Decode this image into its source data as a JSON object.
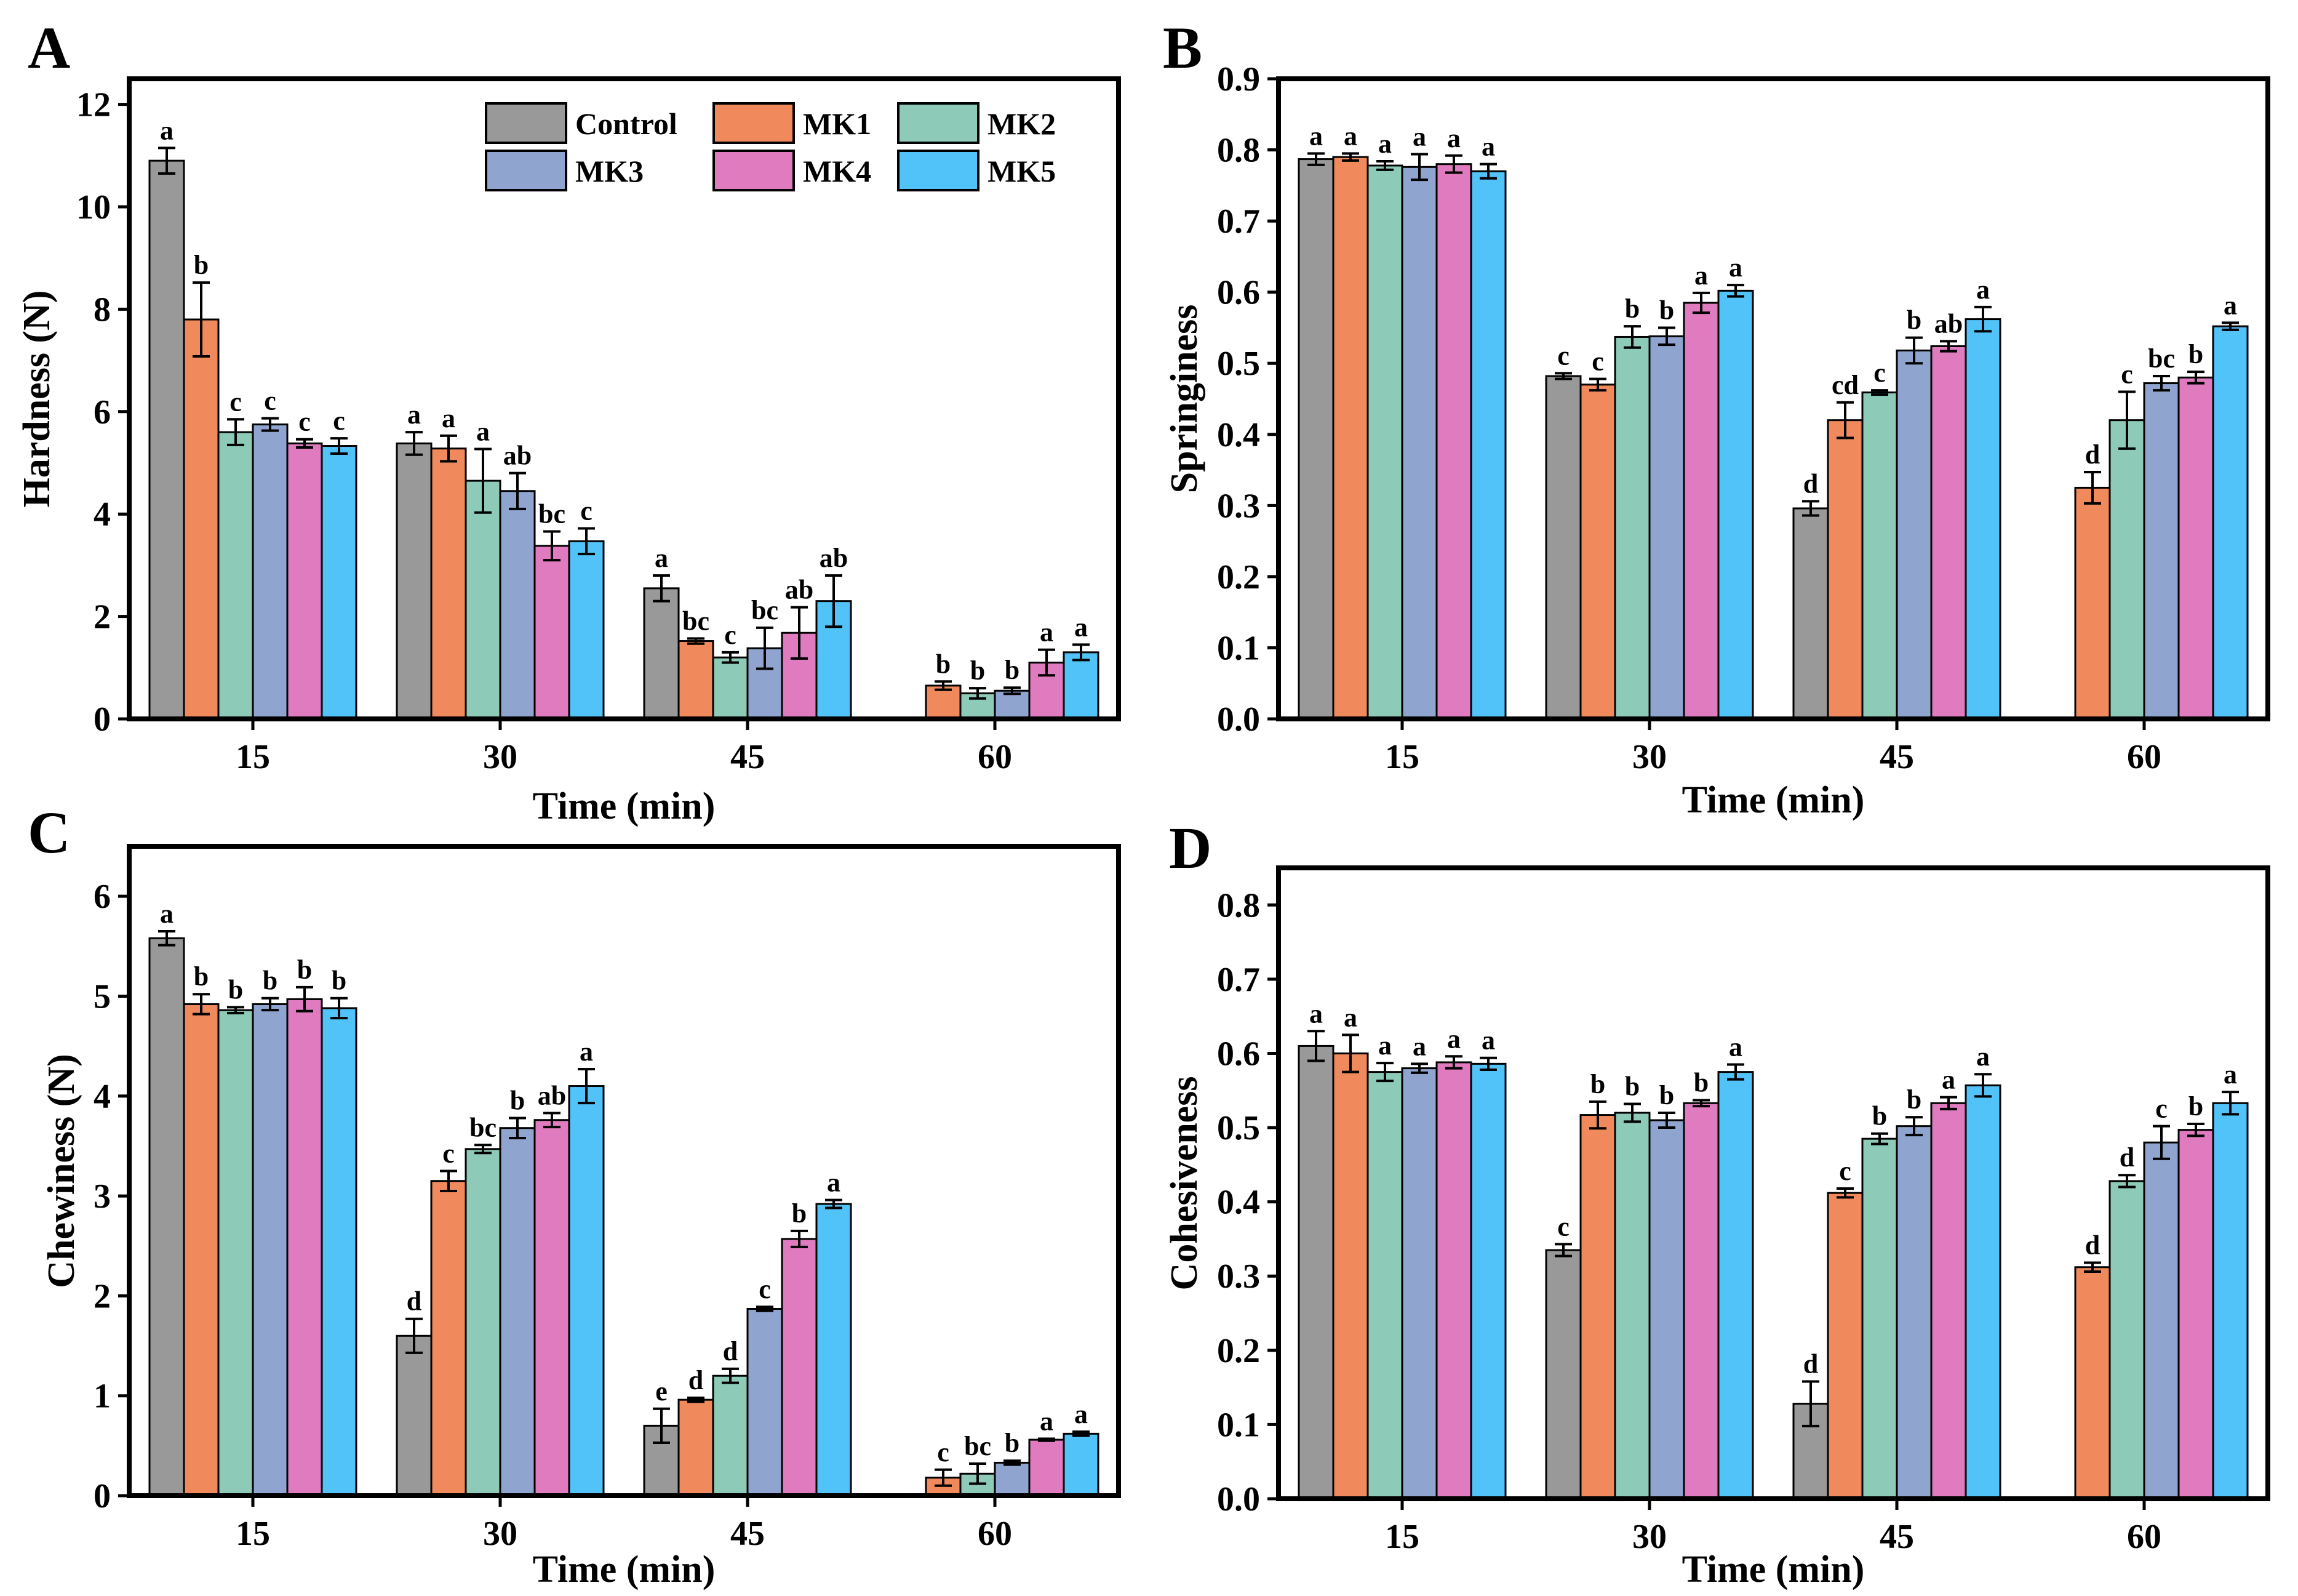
{
  "chart_data": [
    {
      "panel_letter": "A",
      "type": "bar",
      "xlabel": "Time (min)",
      "ylabel": "Hardness (N)",
      "ylim": [
        0,
        12.5
      ],
      "yticks": [
        "0",
        "2",
        "4",
        "6",
        "8",
        "10",
        "12"
      ],
      "categories": [
        "15",
        "30",
        "45",
        "60"
      ],
      "legend_position": "top-right",
      "series": [
        {
          "name": "Control",
          "color": "#999999",
          "values": [
            10.9,
            5.38,
            2.55,
            null
          ],
          "errors": [
            0.25,
            0.22,
            0.25,
            null
          ],
          "labels": [
            "a",
            "a",
            "a",
            ""
          ]
        },
        {
          "name": "MK1",
          "color": "#F08A5D",
          "values": [
            7.8,
            5.28,
            1.52,
            0.65
          ],
          "errors": [
            0.72,
            0.25,
            0.05,
            0.08
          ],
          "labels": [
            "b",
            "a",
            "bc",
            "b"
          ]
        },
        {
          "name": "MK2",
          "color": "#8DCBB8",
          "values": [
            5.6,
            4.65,
            1.2,
            0.5
          ],
          "errors": [
            0.25,
            0.62,
            0.1,
            0.1
          ],
          "labels": [
            "c",
            "a",
            "c",
            "b"
          ]
        },
        {
          "name": "MK3",
          "color": "#8FA4CF",
          "values": [
            5.75,
            4.45,
            1.38,
            0.55
          ],
          "errors": [
            0.12,
            0.35,
            0.4,
            0.06
          ],
          "labels": [
            "c",
            "ab",
            "bc",
            "b"
          ]
        },
        {
          "name": "MK4",
          "color": "#DF7BBE",
          "values": [
            5.38,
            3.38,
            1.68,
            1.1
          ],
          "errors": [
            0.08,
            0.28,
            0.5,
            0.25
          ],
          "labels": [
            "c",
            "bc",
            "ab",
            "a"
          ]
        },
        {
          "name": "MK5",
          "color": "#52C3F8",
          "values": [
            5.33,
            3.47,
            2.3,
            1.3
          ],
          "errors": [
            0.15,
            0.25,
            0.5,
            0.15
          ],
          "labels": [
            "c",
            "c",
            "ab",
            "a"
          ]
        }
      ]
    },
    {
      "panel_letter": "B",
      "type": "bar",
      "xlabel": "Time (min)",
      "ylabel": "Springiness",
      "ylim": [
        0,
        0.9
      ],
      "yticks": [
        "0.0",
        "0.1",
        "0.2",
        "0.3",
        "0.4",
        "0.5",
        "0.6",
        "0.7",
        "0.8",
        "0.9"
      ],
      "categories": [
        "15",
        "30",
        "45",
        "60"
      ],
      "series": [
        {
          "name": "Control",
          "color": "#999999",
          "values": [
            0.787,
            0.482,
            0.296,
            null
          ],
          "errors": [
            0.008,
            0.004,
            0.01,
            null
          ],
          "labels": [
            "a",
            "c",
            "d",
            ""
          ]
        },
        {
          "name": "MK1",
          "color": "#F08A5D",
          "values": [
            0.79,
            0.47,
            0.42,
            0.325
          ],
          "errors": [
            0.005,
            0.008,
            0.025,
            0.022
          ],
          "labels": [
            "a",
            "c",
            "cd",
            "d"
          ]
        },
        {
          "name": "MK2",
          "color": "#8DCBB8",
          "values": [
            0.778,
            0.537,
            0.459,
            0.42
          ],
          "errors": [
            0.006,
            0.015,
            0.003,
            0.04
          ],
          "labels": [
            "a",
            "b",
            "c",
            "c"
          ]
        },
        {
          "name": "MK3",
          "color": "#8FA4CF",
          "values": [
            0.776,
            0.538,
            0.518,
            0.472
          ],
          "errors": [
            0.018,
            0.012,
            0.018,
            0.01
          ],
          "labels": [
            "a",
            "b",
            "b",
            "bc"
          ]
        },
        {
          "name": "MK4",
          "color": "#DF7BBE",
          "values": [
            0.78,
            0.585,
            0.524,
            0.48
          ],
          "errors": [
            0.012,
            0.014,
            0.007,
            0.008
          ],
          "labels": [
            "a",
            "a",
            "ab",
            "b"
          ]
        },
        {
          "name": "MK5",
          "color": "#52C3F8",
          "values": [
            0.77,
            0.602,
            0.562,
            0.552
          ],
          "errors": [
            0.01,
            0.008,
            0.017,
            0.005
          ],
          "labels": [
            "a",
            "a",
            "a",
            "a"
          ]
        }
      ]
    },
    {
      "panel_letter": "C",
      "type": "bar",
      "xlabel": "Time (min)",
      "ylabel": "Chewiness (N)",
      "ylim": [
        0,
        6.5
      ],
      "yticks": [
        "0",
        "1",
        "2",
        "3",
        "4",
        "5",
        "6"
      ],
      "categories": [
        "15",
        "30",
        "45",
        "60"
      ],
      "series": [
        {
          "name": "Control",
          "color": "#999999",
          "values": [
            5.58,
            1.6,
            0.7,
            null
          ],
          "errors": [
            0.07,
            0.17,
            0.17,
            null
          ],
          "labels": [
            "a",
            "d",
            "e",
            ""
          ]
        },
        {
          "name": "MK1",
          "color": "#F08A5D",
          "values": [
            4.92,
            3.15,
            0.96,
            0.18
          ],
          "errors": [
            0.1,
            0.1,
            0.02,
            0.08
          ],
          "labels": [
            "b",
            "c",
            "d",
            "c"
          ]
        },
        {
          "name": "MK2",
          "color": "#8DCBB8",
          "values": [
            4.86,
            3.47,
            1.2,
            0.22
          ],
          "errors": [
            0.03,
            0.04,
            0.07,
            0.1
          ],
          "labels": [
            "b",
            "bc",
            "d",
            "bc"
          ]
        },
        {
          "name": "MK3",
          "color": "#8FA4CF",
          "values": [
            4.92,
            3.68,
            1.87,
            0.33
          ],
          "errors": [
            0.06,
            0.1,
            0.02,
            0.02
          ],
          "labels": [
            "b",
            "b",
            "c",
            "b"
          ]
        },
        {
          "name": "MK4",
          "color": "#DF7BBE",
          "values": [
            4.97,
            3.76,
            2.57,
            0.56
          ],
          "errors": [
            0.12,
            0.07,
            0.08,
            0.01
          ],
          "labels": [
            "b",
            "ab",
            "b",
            "a"
          ]
        },
        {
          "name": "MK5",
          "color": "#52C3F8",
          "values": [
            4.88,
            4.1,
            2.92,
            0.62
          ],
          "errors": [
            0.1,
            0.17,
            0.04,
            0.02
          ],
          "labels": [
            "b",
            "a",
            "a",
            "a"
          ]
        }
      ]
    },
    {
      "panel_letter": "D",
      "type": "bar",
      "xlabel": "Time (min)",
      "ylabel": "Cohesiveness",
      "ylim": [
        0,
        0.85
      ],
      "yticks": [
        "0.0",
        "0.1",
        "0.2",
        "0.3",
        "0.4",
        "0.5",
        "0.6",
        "0.7",
        "0.8"
      ],
      "categories": [
        "15",
        "30",
        "45",
        "60"
      ],
      "series": [
        {
          "name": "Control",
          "color": "#999999",
          "values": [
            0.61,
            0.335,
            0.128,
            null
          ],
          "errors": [
            0.02,
            0.008,
            0.03,
            null
          ],
          "labels": [
            "a",
            "c",
            "d",
            ""
          ]
        },
        {
          "name": "MK1",
          "color": "#F08A5D",
          "values": [
            0.6,
            0.517,
            0.412,
            0.312
          ],
          "errors": [
            0.025,
            0.018,
            0.006,
            0.006
          ],
          "labels": [
            "a",
            "b",
            "c",
            "d"
          ]
        },
        {
          "name": "MK2",
          "color": "#8DCBB8",
          "values": [
            0.575,
            0.52,
            0.485,
            0.428
          ],
          "errors": [
            0.012,
            0.012,
            0.007,
            0.008
          ],
          "labels": [
            "a",
            "b",
            "b",
            "d"
          ]
        },
        {
          "name": "MK3",
          "color": "#8FA4CF",
          "values": [
            0.58,
            0.51,
            0.502,
            0.48
          ],
          "errors": [
            0.006,
            0.01,
            0.012,
            0.022
          ],
          "labels": [
            "a",
            "b",
            "b",
            "c"
          ]
        },
        {
          "name": "MK4",
          "color": "#DF7BBE",
          "values": [
            0.588,
            0.533,
            0.533,
            0.497
          ],
          "errors": [
            0.008,
            0.004,
            0.008,
            0.008
          ],
          "labels": [
            "a",
            "b",
            "a",
            "b"
          ]
        },
        {
          "name": "MK5",
          "color": "#52C3F8",
          "values": [
            0.586,
            0.575,
            0.557,
            0.533
          ],
          "errors": [
            0.008,
            0.01,
            0.015,
            0.015
          ],
          "labels": [
            "a",
            "a",
            "a",
            "a"
          ]
        }
      ]
    }
  ]
}
